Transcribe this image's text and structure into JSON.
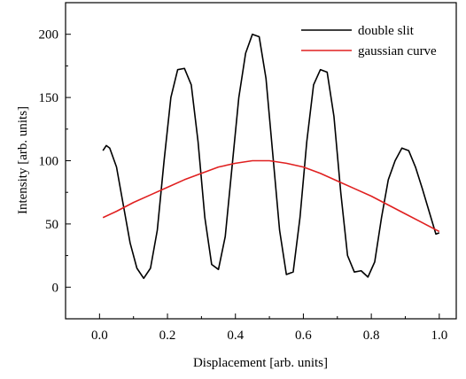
{
  "chart_data": {
    "type": "line",
    "xlabel": "Displacement [arb. units]",
    "ylabel": "Intensity [arb. units]",
    "xlim": [
      -0.1,
      1.05
    ],
    "ylim": [
      -25,
      225
    ],
    "x_ticks": [
      "0.0",
      "0.2",
      "0.4",
      "0.6",
      "0.8",
      "1.0"
    ],
    "x_tick_values": [
      0.0,
      0.2,
      0.4,
      0.6,
      0.8,
      1.0
    ],
    "y_ticks": [
      "0",
      "50",
      "100",
      "150",
      "200"
    ],
    "y_tick_values": [
      0,
      50,
      100,
      150,
      200
    ],
    "legend_position": "top-right",
    "series": [
      {
        "name": "double slit",
        "color": "#000000",
        "x": [
          0.01,
          0.02,
          0.03,
          0.05,
          0.07,
          0.09,
          0.11,
          0.13,
          0.15,
          0.17,
          0.19,
          0.21,
          0.23,
          0.25,
          0.27,
          0.29,
          0.31,
          0.33,
          0.35,
          0.37,
          0.39,
          0.41,
          0.43,
          0.45,
          0.47,
          0.49,
          0.51,
          0.53,
          0.55,
          0.57,
          0.59,
          0.61,
          0.63,
          0.65,
          0.67,
          0.69,
          0.71,
          0.73,
          0.75,
          0.77,
          0.79,
          0.81,
          0.83,
          0.85,
          0.87,
          0.89,
          0.91,
          0.93,
          0.95,
          0.97,
          0.99,
          1.0
        ],
        "y": [
          108,
          112,
          110,
          95,
          65,
          35,
          15,
          7,
          15,
          45,
          100,
          150,
          172,
          173,
          160,
          115,
          55,
          18,
          14,
          40,
          95,
          150,
          185,
          200,
          198,
          165,
          105,
          45,
          10,
          12,
          55,
          115,
          160,
          172,
          170,
          135,
          75,
          25,
          12,
          13,
          8,
          20,
          55,
          85,
          100,
          110,
          108,
          95,
          78,
          60,
          42,
          43
        ]
      },
      {
        "name": "gaussian curve",
        "color": "#e02020",
        "x": [
          0.01,
          0.05,
          0.1,
          0.15,
          0.2,
          0.25,
          0.3,
          0.35,
          0.4,
          0.45,
          0.5,
          0.55,
          0.6,
          0.65,
          0.7,
          0.75,
          0.8,
          0.85,
          0.9,
          0.95,
          1.0
        ],
        "y": [
          55,
          60,
          67,
          73,
          79,
          85,
          90,
          95,
          98,
          100,
          100,
          98,
          95,
          90,
          84,
          78,
          72,
          65,
          58,
          51,
          44
        ]
      }
    ]
  }
}
